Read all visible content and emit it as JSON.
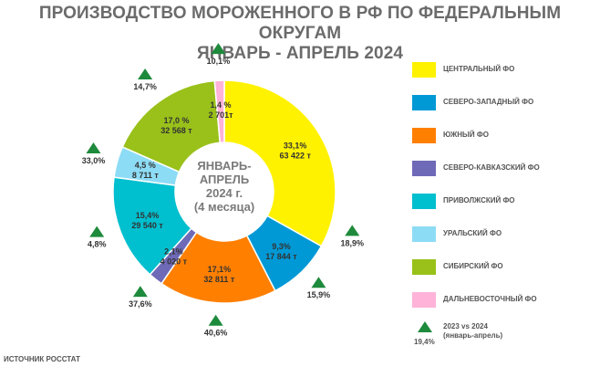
{
  "title": {
    "line1": "ПРОИЗВОДСТВО МОРОЖЕННОГО В РФ ПО ФЕДЕРАЛЬНЫМ ОКРУГАМ",
    "line2": "ЯНВАРЬ - АПРЕЛЬ 2024"
  },
  "center_label": [
    "ЯНВАРЬ-",
    "АПРЕЛЬ",
    "2024 г.",
    "(4 месяца)"
  ],
  "source": "ИСТОЧНИК РОССТАТ",
  "legend_growth": {
    "label_line1": "2023 vs 2024",
    "label_line2": "(январь-апрель)",
    "value": "19,4%",
    "color": "#1e8a3c"
  },
  "chart_data": {
    "type": "pie",
    "title": "ПРОИЗВОДСТВО МОРОЖЕННОГО В РФ ПО ФЕДЕРАЛЬНЫМ ОКРУГАМ ЯНВАРЬ - АПРЕЛЬ 2024",
    "donut": true,
    "legend_position": "right",
    "slices": [
      {
        "name": "ЦЕНТРАЛЬНЫЙ ФО",
        "percent": 33.1,
        "percent_label": "33,1%",
        "volume": 63422,
        "volume_label": "63 422 т",
        "growth_label": "18,9%",
        "color": "#fff200"
      },
      {
        "name": "СЕВЕРО-ЗАПАДНЫЙ ФО",
        "percent": 9.3,
        "percent_label": "9,3%",
        "volume": 17844,
        "volume_label": "17 844 т",
        "growth_label": "15,9%",
        "color": "#0099d6"
      },
      {
        "name": "ЮЖНЫЙ ФО",
        "percent": 17.1,
        "percent_label": "17,1%",
        "volume": 32811,
        "volume_label": "32 811 т",
        "growth_label": "40,6%",
        "color": "#ff7f00"
      },
      {
        "name": "СЕВЕРО-КАВКАЗСКИЙ ФО",
        "percent": 2.1,
        "percent_label": "2,1%",
        "volume": 4020,
        "volume_label": "4 020 т",
        "growth_label": "37,6%",
        "color": "#6e6ab8"
      },
      {
        "name": "ПРИВОЛЖСКИЙ ФО",
        "percent": 15.4,
        "percent_label": "15,4%",
        "volume": 29540,
        "volume_label": "29 540 т",
        "growth_label": "4,8%",
        "color": "#00bfcf"
      },
      {
        "name": "УРАЛЬСКИЙ ФО",
        "percent": 4.5,
        "percent_label": "4,5 %",
        "volume": 8711,
        "volume_label": "8 711 т",
        "growth_label": "33,0%",
        "color": "#8ddcf5"
      },
      {
        "name": "СИБИРСКИЙ ФО",
        "percent": 17.0,
        "percent_label": "17,0 %",
        "volume": 32568,
        "volume_label": "32 568 т",
        "growth_label": "14,7%",
        "color": "#99c11a"
      },
      {
        "name": "ДАЛЬНЕВОСТОЧНЫЙ ФО",
        "percent": 1.4,
        "percent_label": "1,4 %",
        "volume": 2701,
        "volume_label": "2 701т",
        "growth_label": "10,1%",
        "color": "#ffb3d9"
      }
    ]
  }
}
